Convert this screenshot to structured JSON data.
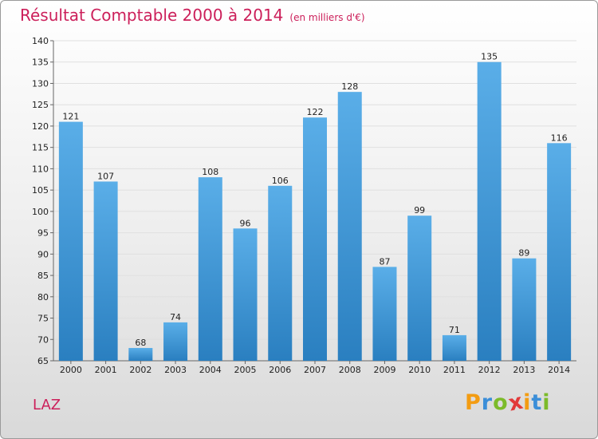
{
  "chart_data": {
    "type": "bar",
    "title": "Résultat Comptable 2000 à 2014",
    "subtitle": "(en milliers d'€)",
    "categories": [
      "2000",
      "2001",
      "2002",
      "2003",
      "2004",
      "2005",
      "2006",
      "2007",
      "2008",
      "2009",
      "2010",
      "2011",
      "2012",
      "2013",
      "2014"
    ],
    "values": [
      121,
      107,
      68,
      74,
      108,
      96,
      106,
      122,
      128,
      87,
      99,
      71,
      135,
      89,
      116
    ],
    "ylim": [
      65,
      140
    ],
    "yticks": [
      65,
      70,
      75,
      80,
      85,
      90,
      95,
      100,
      105,
      110,
      115,
      120,
      125,
      130,
      135,
      140
    ],
    "grid": true,
    "xlabel": "",
    "ylabel": ""
  },
  "footer": {
    "location": "LAZ",
    "logo_letters": [
      "P",
      "r",
      "o",
      "x",
      "i",
      "t",
      "i"
    ]
  },
  "colors": {
    "title": "#cc1f5a",
    "bar_top": "#5aaee8",
    "bar_bottom": "#2a7fc0",
    "grid": "#e0e0e0",
    "axis": "#666666",
    "logo": [
      "#f39c12",
      "#3b8ed8",
      "#7cbb2a",
      "#e23a3a",
      "#f39c12",
      "#3b8ed8",
      "#7cbb2a"
    ]
  }
}
